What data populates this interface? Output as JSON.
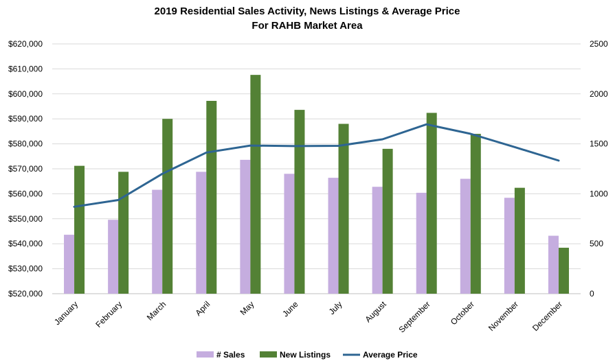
{
  "chart_data": {
    "type": "bar",
    "title": "2019 Residential Sales Activity, News Listings & Average Price",
    "subtitle": "For RAHB Market Area",
    "categories": [
      "January",
      "February",
      "March",
      "April",
      "May",
      "June",
      "July",
      "August",
      "September",
      "October",
      "November",
      "December"
    ],
    "series": [
      {
        "name": "# Sales",
        "type": "bar",
        "axis": "right",
        "color": "#c5addf",
        "values": [
          590,
          740,
          1040,
          1220,
          1340,
          1200,
          1160,
          1070,
          1010,
          1150,
          960,
          580
        ]
      },
      {
        "name": "New Listings",
        "type": "bar",
        "axis": "right",
        "color": "#538135",
        "values": [
          1280,
          1220,
          1750,
          1930,
          2190,
          1840,
          1700,
          1450,
          1810,
          1600,
          1060,
          460
        ]
      },
      {
        "name": "Average Price",
        "type": "line",
        "axis": "left",
        "color": "#2e6592",
        "values": [
          554800,
          557500,
          568000,
          576500,
          579300,
          579100,
          579200,
          581800,
          587800,
          584000,
          578700,
          573300
        ]
      }
    ],
    "ylim_left": [
      520000,
      620000
    ],
    "yticks_left": [
      520000,
      530000,
      540000,
      550000,
      560000,
      570000,
      580000,
      590000,
      600000,
      610000,
      620000
    ],
    "ytick_labels_left": [
      "$520,000",
      "$530,000",
      "$540,000",
      "$550,000",
      "$560,000",
      "$570,000",
      "$580,000",
      "$590,000",
      "$600,000",
      "$610,000",
      "$620,000"
    ],
    "ylim_right": [
      0,
      2500
    ],
    "yticks_right": [
      0,
      500,
      1000,
      1500,
      2000,
      2500
    ],
    "ytick_labels_right": [
      "0",
      "500",
      "1000",
      "1500",
      "2000",
      "2500"
    ],
    "grid": true,
    "legend_position": "bottom"
  }
}
